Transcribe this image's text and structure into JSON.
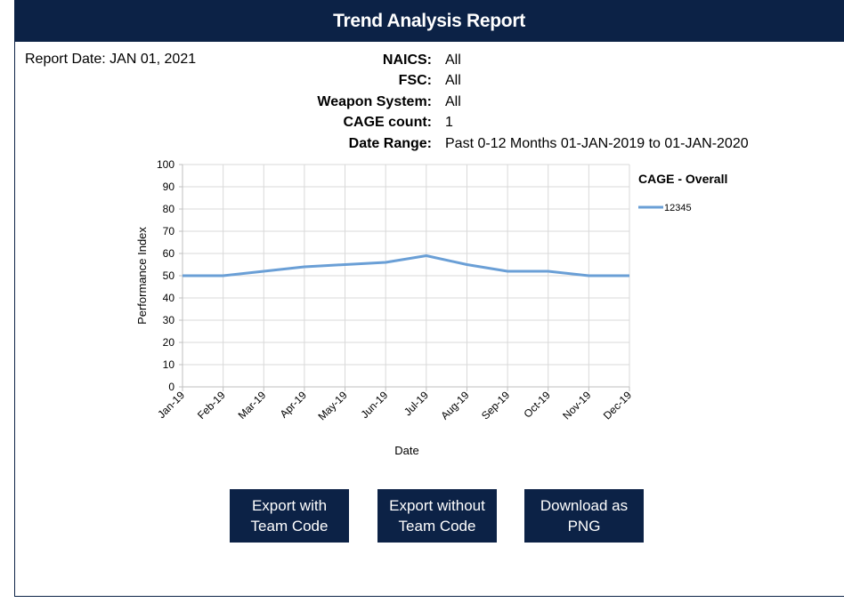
{
  "header": {
    "title": "Trend Analysis Report"
  },
  "report_date": "Report Date: JAN 01, 2021",
  "filters": [
    {
      "label": "NAICS:",
      "value": "All"
    },
    {
      "label": "FSC:",
      "value": "All"
    },
    {
      "label": "Weapon System:",
      "value": "All"
    },
    {
      "label": "CAGE count:",
      "value": "1"
    },
    {
      "label": "Date Range:",
      "value": "Past 0-12 Months 01-JAN-2019 to 01-JAN-2020"
    }
  ],
  "chart_data": {
    "type": "line",
    "categories": [
      "Jan-19",
      "Feb-19",
      "Mar-19",
      "Apr-19",
      "May-19",
      "Jun-19",
      "Jul-19",
      "Aug-19",
      "Sep-19",
      "Oct-19",
      "Nov-19",
      "Dec-19"
    ],
    "series": [
      {
        "name": "12345",
        "color": "#6a9fd6",
        "values": [
          50,
          50,
          52,
          54,
          55,
          56,
          59,
          55,
          52,
          52,
          50,
          50
        ]
      }
    ],
    "legend_title": "CAGE - Overall",
    "xlabel": "Date",
    "ylabel": "Performance Index",
    "ylim": [
      0,
      100
    ],
    "yticks": [
      0,
      10,
      20,
      30,
      40,
      50,
      60,
      70,
      80,
      90,
      100
    ],
    "grid": true,
    "legend": "right"
  },
  "buttons": [
    "Export with Team Code",
    "Export without Team Code",
    "Download as PNG"
  ]
}
